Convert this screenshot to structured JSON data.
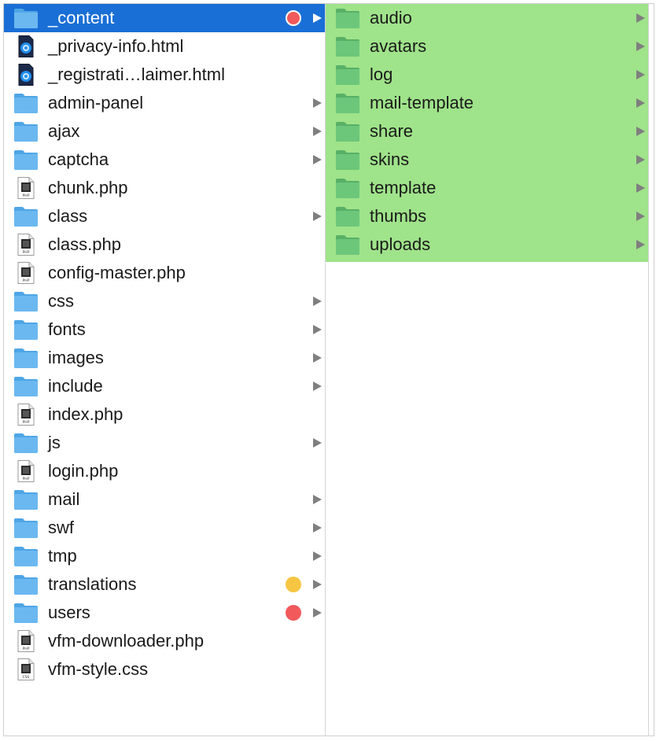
{
  "colors": {
    "selected_bg": "#1a6fd6",
    "green_tag_bg": "#9fe38a",
    "folder_blue": "#6bb8f0",
    "folder_green": "#6cc77a",
    "tag_red": "#f1595b",
    "tag_yellow": "#f6c542",
    "arrow_gray": "#7f7f7f"
  },
  "left_column": {
    "items": [
      {
        "label": "_content",
        "type": "folder",
        "selected": true,
        "tag": "red",
        "has_children": true
      },
      {
        "label": "_privacy-info.html",
        "type": "html-file",
        "selected": false,
        "tag": null,
        "has_children": false
      },
      {
        "label": "_registrati…laimer.html",
        "type": "html-file",
        "selected": false,
        "tag": null,
        "has_children": false
      },
      {
        "label": "admin-panel",
        "type": "folder",
        "selected": false,
        "tag": null,
        "has_children": true
      },
      {
        "label": "ajax",
        "type": "folder",
        "selected": false,
        "tag": null,
        "has_children": true
      },
      {
        "label": "captcha",
        "type": "folder",
        "selected": false,
        "tag": null,
        "has_children": true
      },
      {
        "label": "chunk.php",
        "type": "php-file",
        "selected": false,
        "tag": null,
        "has_children": false
      },
      {
        "label": "class",
        "type": "folder",
        "selected": false,
        "tag": null,
        "has_children": true
      },
      {
        "label": "class.php",
        "type": "php-file",
        "selected": false,
        "tag": null,
        "has_children": false
      },
      {
        "label": "config-master.php",
        "type": "php-file",
        "selected": false,
        "tag": null,
        "has_children": false
      },
      {
        "label": "css",
        "type": "folder",
        "selected": false,
        "tag": null,
        "has_children": true
      },
      {
        "label": "fonts",
        "type": "folder",
        "selected": false,
        "tag": null,
        "has_children": true
      },
      {
        "label": "images",
        "type": "folder",
        "selected": false,
        "tag": null,
        "has_children": true
      },
      {
        "label": "include",
        "type": "folder",
        "selected": false,
        "tag": null,
        "has_children": true
      },
      {
        "label": "index.php",
        "type": "php-file",
        "selected": false,
        "tag": null,
        "has_children": false
      },
      {
        "label": "js",
        "type": "folder",
        "selected": false,
        "tag": null,
        "has_children": true
      },
      {
        "label": "login.php",
        "type": "php-file",
        "selected": false,
        "tag": null,
        "has_children": false
      },
      {
        "label": "mail",
        "type": "folder",
        "selected": false,
        "tag": null,
        "has_children": true
      },
      {
        "label": "swf",
        "type": "folder",
        "selected": false,
        "tag": null,
        "has_children": true
      },
      {
        "label": "tmp",
        "type": "folder",
        "selected": false,
        "tag": null,
        "has_children": true
      },
      {
        "label": "translations",
        "type": "folder",
        "selected": false,
        "tag": "yellow",
        "has_children": true
      },
      {
        "label": "users",
        "type": "folder",
        "selected": false,
        "tag": "red",
        "has_children": true
      },
      {
        "label": "vfm-downloader.php",
        "type": "php-file",
        "selected": false,
        "tag": null,
        "has_children": false
      },
      {
        "label": "vfm-style.css",
        "type": "css-file",
        "selected": false,
        "tag": null,
        "has_children": false
      }
    ]
  },
  "right_column": {
    "items": [
      {
        "label": "audio",
        "type": "folder",
        "tag": "green",
        "has_children": true
      },
      {
        "label": "avatars",
        "type": "folder",
        "tag": "green",
        "has_children": true
      },
      {
        "label": "log",
        "type": "folder",
        "tag": "green",
        "has_children": true
      },
      {
        "label": "mail-template",
        "type": "folder",
        "tag": "green",
        "has_children": true
      },
      {
        "label": "share",
        "type": "folder",
        "tag": "green",
        "has_children": true
      },
      {
        "label": "skins",
        "type": "folder",
        "tag": "green",
        "has_children": true
      },
      {
        "label": "template",
        "type": "folder",
        "tag": "green",
        "has_children": true
      },
      {
        "label": "thumbs",
        "type": "folder",
        "tag": "green",
        "has_children": true
      },
      {
        "label": "uploads",
        "type": "folder",
        "tag": "green",
        "has_children": true
      }
    ]
  }
}
